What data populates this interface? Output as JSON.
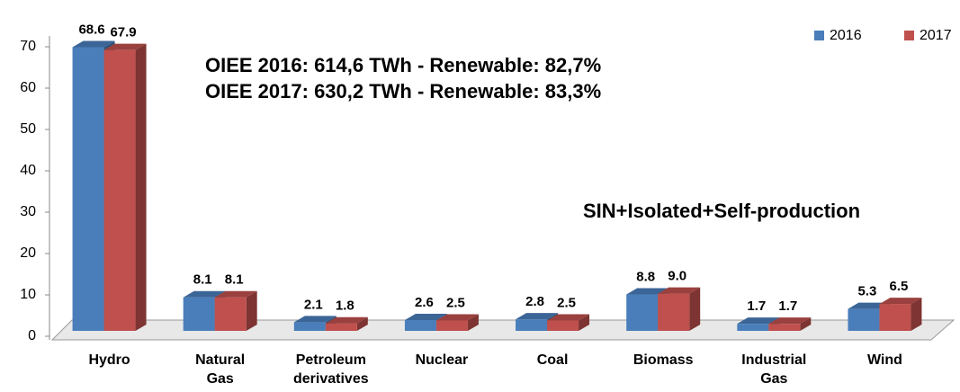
{
  "chart_data": {
    "type": "bar3d",
    "categories": [
      "Hydro",
      "Natural\nGas",
      "Petroleum\nderivatives",
      "Nuclear",
      "Coal",
      "Biomass",
      "Industrial\nGas",
      "Wind"
    ],
    "series": [
      {
        "name": "2016",
        "color": "#4a7ebb",
        "values": [
          68.6,
          8.1,
          2.1,
          2.6,
          2.8,
          8.8,
          1.7,
          5.3
        ],
        "value_labels": [
          "68.6",
          "8.1",
          "2.1",
          "2.6",
          "2.8",
          "8.8",
          "1.7",
          "5.3"
        ]
      },
      {
        "name": "2017",
        "color": "#c0504d",
        "values": [
          67.9,
          8.1,
          1.8,
          2.5,
          2.5,
          9.0,
          1.7,
          6.5
        ],
        "value_labels": [
          "67.9",
          "8.1",
          "1.8",
          "2.5",
          "2.5",
          "9.0",
          "1.7",
          "6.5"
        ]
      }
    ],
    "ylim": [
      0,
      70
    ],
    "yticks": [
      0,
      10,
      20,
      30,
      40,
      50,
      60,
      70
    ],
    "annotations": [
      "OIEE 2016: 614,6 TWh - Renewable: 82,7%",
      "OIEE 2017: 630,2 TWh - Renewable: 83,3%",
      "SIN+Isolated+Self-production"
    ],
    "legend": "top-right"
  }
}
